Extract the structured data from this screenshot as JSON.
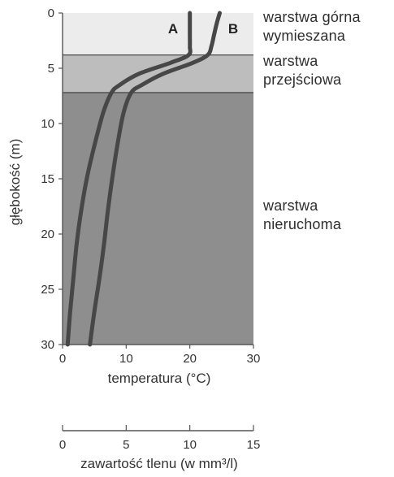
{
  "chart_data": {
    "type": "line",
    "ylabel": "głębokość (m)",
    "xlabel": "temperatura (°C)",
    "x2label": "zawartość tlenu (w mm³/l)",
    "xlim": [
      0,
      30
    ],
    "ylim": [
      0,
      30
    ],
    "x_ticks": [
      "0",
      "10",
      "20",
      "30"
    ],
    "y_ticks": [
      "0",
      "5",
      "10",
      "15",
      "20",
      "25",
      "30"
    ],
    "x2lim": [
      0,
      15
    ],
    "x2_ticks": [
      "0",
      "5",
      "10",
      "15"
    ],
    "layers": [
      {
        "name": [
          "warstwa górna",
          "wymieszana"
        ],
        "top": 0,
        "bottom": 3.8,
        "color": "#ececec"
      },
      {
        "name": [
          "warstwa",
          "przejściowa"
        ],
        "top": 3.8,
        "bottom": 7.2,
        "color": "#bdbdbd"
      },
      {
        "name": [
          "warstwa",
          "nieruchoma"
        ],
        "top": 7.2,
        "bottom": 30,
        "color": "#8e8e8e"
      }
    ],
    "series": [
      {
        "name": "A",
        "depth": [
          0,
          1,
          2,
          3,
          3.8,
          4.5,
          5.5,
          6.5,
          7.2,
          9,
          12,
          15,
          18,
          21,
          24,
          27,
          30
        ],
        "values": [
          20.0,
          20.0,
          20.0,
          20.0,
          19.8,
          17.0,
          12.0,
          9.0,
          7.7,
          6.4,
          5.0,
          3.8,
          2.9,
          2.2,
          1.7,
          1.2,
          0.8
        ]
      },
      {
        "name": "B",
        "depth": [
          0,
          1,
          2,
          3,
          3.8,
          4.5,
          5.5,
          6.5,
          7.2,
          9,
          12,
          15,
          18,
          21,
          24,
          27,
          30
        ],
        "values": [
          24.7,
          24.2,
          23.8,
          23.4,
          22.8,
          20.5,
          15.8,
          12.5,
          10.8,
          9.6,
          8.6,
          7.8,
          7.1,
          6.5,
          5.8,
          5.0,
          4.3
        ]
      }
    ],
    "colors": {
      "curve": "#474747",
      "axis": "#555555"
    }
  }
}
